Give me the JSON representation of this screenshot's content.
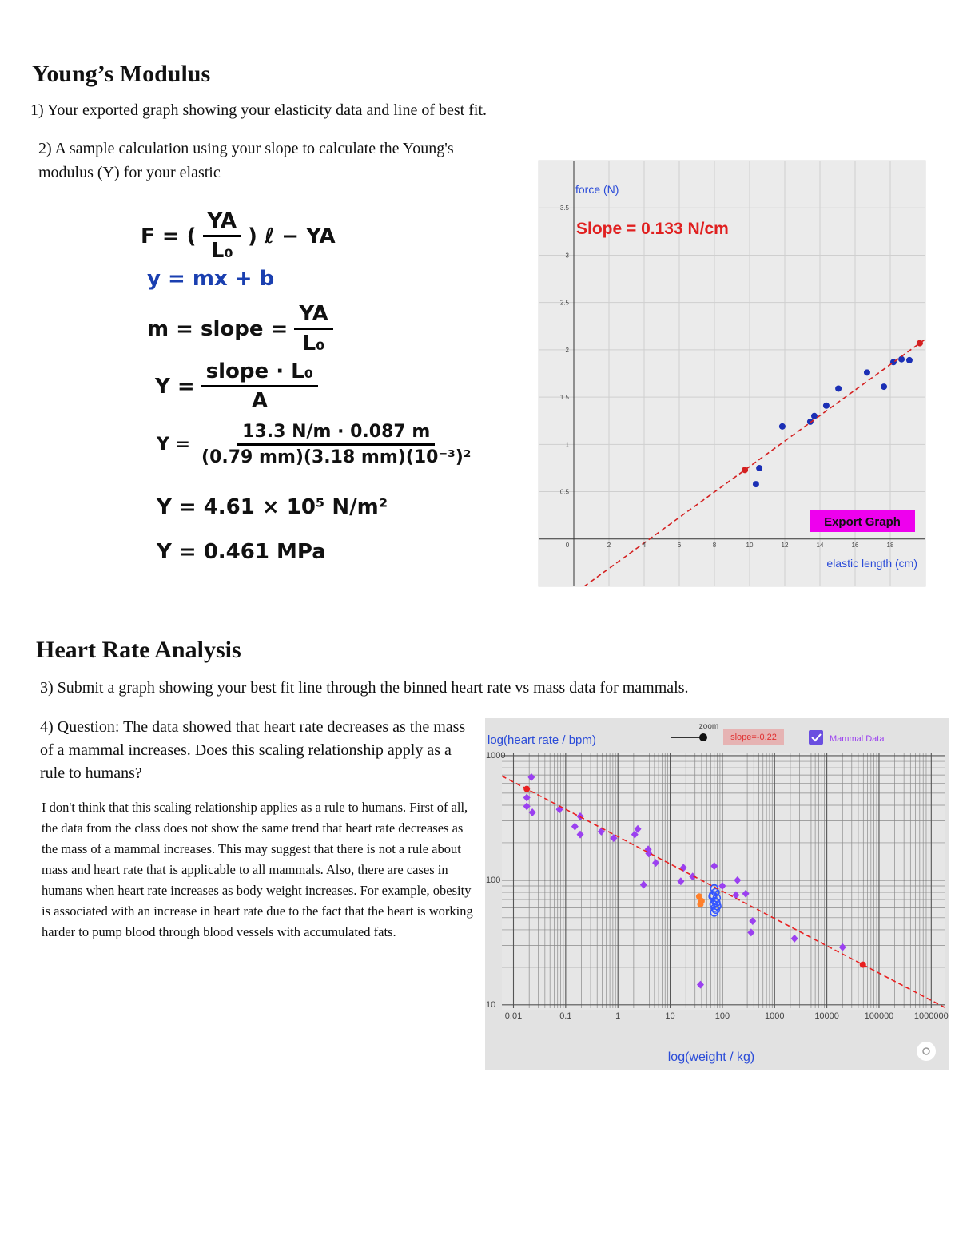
{
  "young": {
    "heading": "Young’s Modulus",
    "item1": "1) Your exported graph showing your elasticity data and line of best fit.",
    "item2": "2) A sample calculation using your slope to calculate the Young's modulus (Y) for your elastic",
    "equations": [
      {
        "lhs": "F = (",
        "num": "YA",
        "den": "L₀",
        "after": ") ℓ − YA"
      },
      {
        "text": "y =  mx + b"
      },
      {
        "lhs": "m = slope =",
        "num": "YA",
        "den": "L₀"
      },
      {
        "lhs": "Y =",
        "num": "slope · L₀",
        "den": "A"
      },
      {
        "lhs": "Y =",
        "num": "13.3 N/m · 0.087 m",
        "den": "(0.79 mm)(3.18 mm)(10⁻³)²"
      },
      {
        "text": "Y = 4.61 × 10⁵ N/m²"
      },
      {
        "text": "Y = 0.461 MPa"
      }
    ]
  },
  "heart": {
    "heading": "Heart Rate Analysis",
    "item3": "3) Submit a graph showing your best fit line through the binned heart rate vs mass data for mammals.",
    "question": "4) Question: The data showed that heart rate decreases as the mass of a mammal increases. Does this scaling relationship apply as a rule to humans?",
    "answer": "I don't think that this scaling relationship applies as a rule to humans. First of all, the data from the class does not show the same trend that heart rate decreases as the mass of a mammal increases. This may suggest that there is not a rule about mass and heart rate that is applicable to all mammals. Also, there are cases in humans when heart rate increases as body weight increases. For example, obesity is associated with an increase in heart rate due to the fact that the heart is working harder to pump blood through blood vessels with accumulated fats."
  },
  "chart_data": [
    {
      "type": "scatter",
      "x_label": "elastic length (cm)",
      "y_label": "force (N)",
      "annotation": "Slope = 0.133 N/cm",
      "button": "Export Graph",
      "xlim": [
        -2,
        20
      ],
      "ylim": [
        -0.5,
        4
      ],
      "xticks": [
        0,
        2,
        4,
        6,
        8,
        10,
        12,
        14,
        16,
        18
      ],
      "yticks": [
        0.5,
        1,
        1.5,
        2,
        2.5,
        3,
        3.5
      ],
      "grid": true,
      "series": [
        {
          "color": "#1b2fb5",
          "marker": "circle",
          "x": [
            10.36,
            10.55,
            11.86,
            13.45,
            13.68,
            14.36,
            15.05,
            16.68,
            17.64,
            18.18,
            18.64,
            19.09
          ],
          "values": [
            0.58,
            0.75,
            1.19,
            1.24,
            1.3,
            1.41,
            1.59,
            1.76,
            1.61,
            1.87,
            1.9,
            1.89
          ]
        },
        {
          "color": "#d42020",
          "marker": "circle",
          "fit": true,
          "x": [
            9.73,
            19.68
          ],
          "values": [
            0.73,
            2.07
          ]
        }
      ]
    },
    {
      "type": "scatter",
      "x_label": "log(weight / kg)",
      "y_label": "log(heart rate / bpm)",
      "zoom_label": "zoom",
      "slope_label": "slope=-0.22",
      "x_scale": "log",
      "y_scale": "log",
      "xlim": [
        0.006,
        1800000
      ],
      "ylim": [
        9.4,
        1060
      ],
      "xticks": [
        0.01,
        0.1,
        1,
        10,
        100,
        1000,
        10000,
        100000,
        1000000
      ],
      "yticks": [
        10,
        100,
        1000
      ],
      "grid": true,
      "series": [
        {
          "name": "Mammal Data",
          "color": "#9b40f0",
          "marker": "diamond",
          "x": [
            0.022,
            0.018,
            0.018,
            0.023,
            0.076,
            0.15,
            0.19,
            0.19,
            0.48,
            0.83,
            2.1,
            2.4,
            3.8,
            3.9,
            5.3,
            3.1,
            18,
            16,
            27,
            70,
            100,
            195,
            182,
            280,
            380,
            355,
            2400,
            20000,
            38
          ],
          "values": [
            672,
            460,
            392,
            350,
            370,
            270,
            325,
            233,
            246,
            218,
            233,
            258,
            177,
            164,
            138,
            92,
            126,
            98,
            107,
            130,
            90,
            100,
            76,
            78,
            47,
            38,
            34,
            29,
            14.5
          ]
        },
        {
          "color": "#3355ff",
          "marker": "circle-open",
          "x": [
            70,
            74,
            66,
            78,
            72,
            68,
            80,
            75,
            70,
            65,
            77,
            72
          ],
          "values": [
            86,
            80,
            76,
            72,
            68,
            64,
            62,
            58,
            55,
            74,
            66,
            60
          ]
        },
        {
          "color": "#ff7f2a",
          "marker": "circle",
          "x": [
            36,
            40,
            38
          ],
          "values": [
            74,
            68,
            64
          ]
        },
        {
          "color": "#e82020",
          "marker": "circle",
          "fit": true,
          "x": [
            0.018,
            49000
          ],
          "values": [
            540,
            21
          ]
        }
      ]
    }
  ]
}
